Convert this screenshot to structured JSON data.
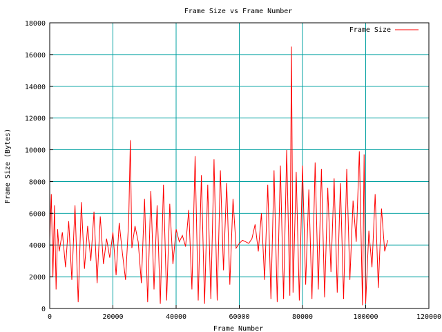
{
  "colors": {
    "background": "#ffffff",
    "grid": "#00a0a0",
    "series": "#ff0000",
    "axis": "#000000"
  },
  "chart_data": {
    "type": "line",
    "title": "Frame Size vs Frame Number",
    "xlabel": "Frame Number",
    "ylabel": "Frame Size (Bytes)",
    "xlim": [
      0,
      120000
    ],
    "ylim": [
      0,
      18000
    ],
    "x_ticks": [
      0,
      20000,
      40000,
      60000,
      80000,
      100000,
      120000
    ],
    "x_tick_labels": [
      "0",
      "20000",
      "40000",
      "60000",
      "80000",
      "100000",
      "120000"
    ],
    "y_ticks": [
      0,
      2000,
      4000,
      6000,
      8000,
      10000,
      12000,
      14000,
      16000,
      18000
    ],
    "y_tick_labels": [
      "0",
      "2000",
      "4000",
      "6000",
      "8000",
      "10000",
      "12000",
      "14000",
      "16000",
      "18000"
    ],
    "grid": true,
    "legend_position": "top-right",
    "series": [
      {
        "name": "Frame Size",
        "color": "#ff0000",
        "x": [
          0,
          500,
          1000,
          1500,
          2000,
          2500,
          3000,
          4000,
          5000,
          6000,
          7000,
          8000,
          9000,
          10000,
          11000,
          12000,
          13000,
          14000,
          15000,
          16000,
          17000,
          18000,
          19000,
          20000,
          21000,
          22000,
          23000,
          24000,
          25000,
          25500,
          26000,
          27000,
          28000,
          29000,
          30000,
          31000,
          32000,
          33000,
          34000,
          35000,
          36000,
          37000,
          38000,
          39000,
          40000,
          41000,
          42000,
          43000,
          44000,
          45000,
          46000,
          47000,
          48000,
          49000,
          50000,
          51000,
          52000,
          53000,
          54000,
          55000,
          56000,
          57000,
          58000,
          59000,
          60000,
          61000,
          62000,
          63000,
          64000,
          65000,
          66000,
          67000,
          68000,
          69000,
          70000,
          71000,
          72000,
          73000,
          74000,
          75000,
          76000,
          76500,
          77000,
          78000,
          79000,
          80000,
          81000,
          82000,
          83000,
          84000,
          85000,
          86000,
          87000,
          88000,
          89000,
          90000,
          91000,
          92000,
          93000,
          94000,
          95000,
          96000,
          97000,
          98000,
          99000,
          99500,
          100000,
          101000,
          102000,
          103000,
          104000,
          105000,
          106000,
          107000
        ],
        "y": [
          4300,
          7200,
          2000,
          6500,
          1200,
          5000,
          3600,
          4800,
          2600,
          5500,
          1800,
          6500,
          400,
          6700,
          2500,
          5200,
          3000,
          6100,
          1600,
          5800,
          2800,
          4400,
          3200,
          4800,
          2100,
          5400,
          3500,
          1800,
          5600,
          10600,
          3800,
          5200,
          4200,
          1600,
          6900,
          400,
          7400,
          1200,
          6500,
          300,
          7800,
          500,
          6600,
          2800,
          5000,
          4200,
          4600,
          3900,
          6200,
          1200,
          9600,
          500,
          8400,
          300,
          7800,
          600,
          9400,
          500,
          8700,
          2400,
          7900,
          1500,
          6900,
          3800,
          4100,
          4300,
          4200,
          4100,
          4400,
          5300,
          3600,
          6000,
          1800,
          7800,
          600,
          8700,
          400,
          9000,
          600,
          10000,
          800,
          16500,
          1000,
          8600,
          500,
          9000,
          1500,
          7500,
          600,
          9200,
          1200,
          8800,
          700,
          7600,
          2300,
          8200,
          1000,
          7900,
          600,
          8800,
          1800,
          6800,
          4200,
          9900,
          200,
          9700,
          300,
          4900,
          2600,
          7200,
          1300,
          6300,
          3600,
          4300
        ]
      }
    ]
  }
}
